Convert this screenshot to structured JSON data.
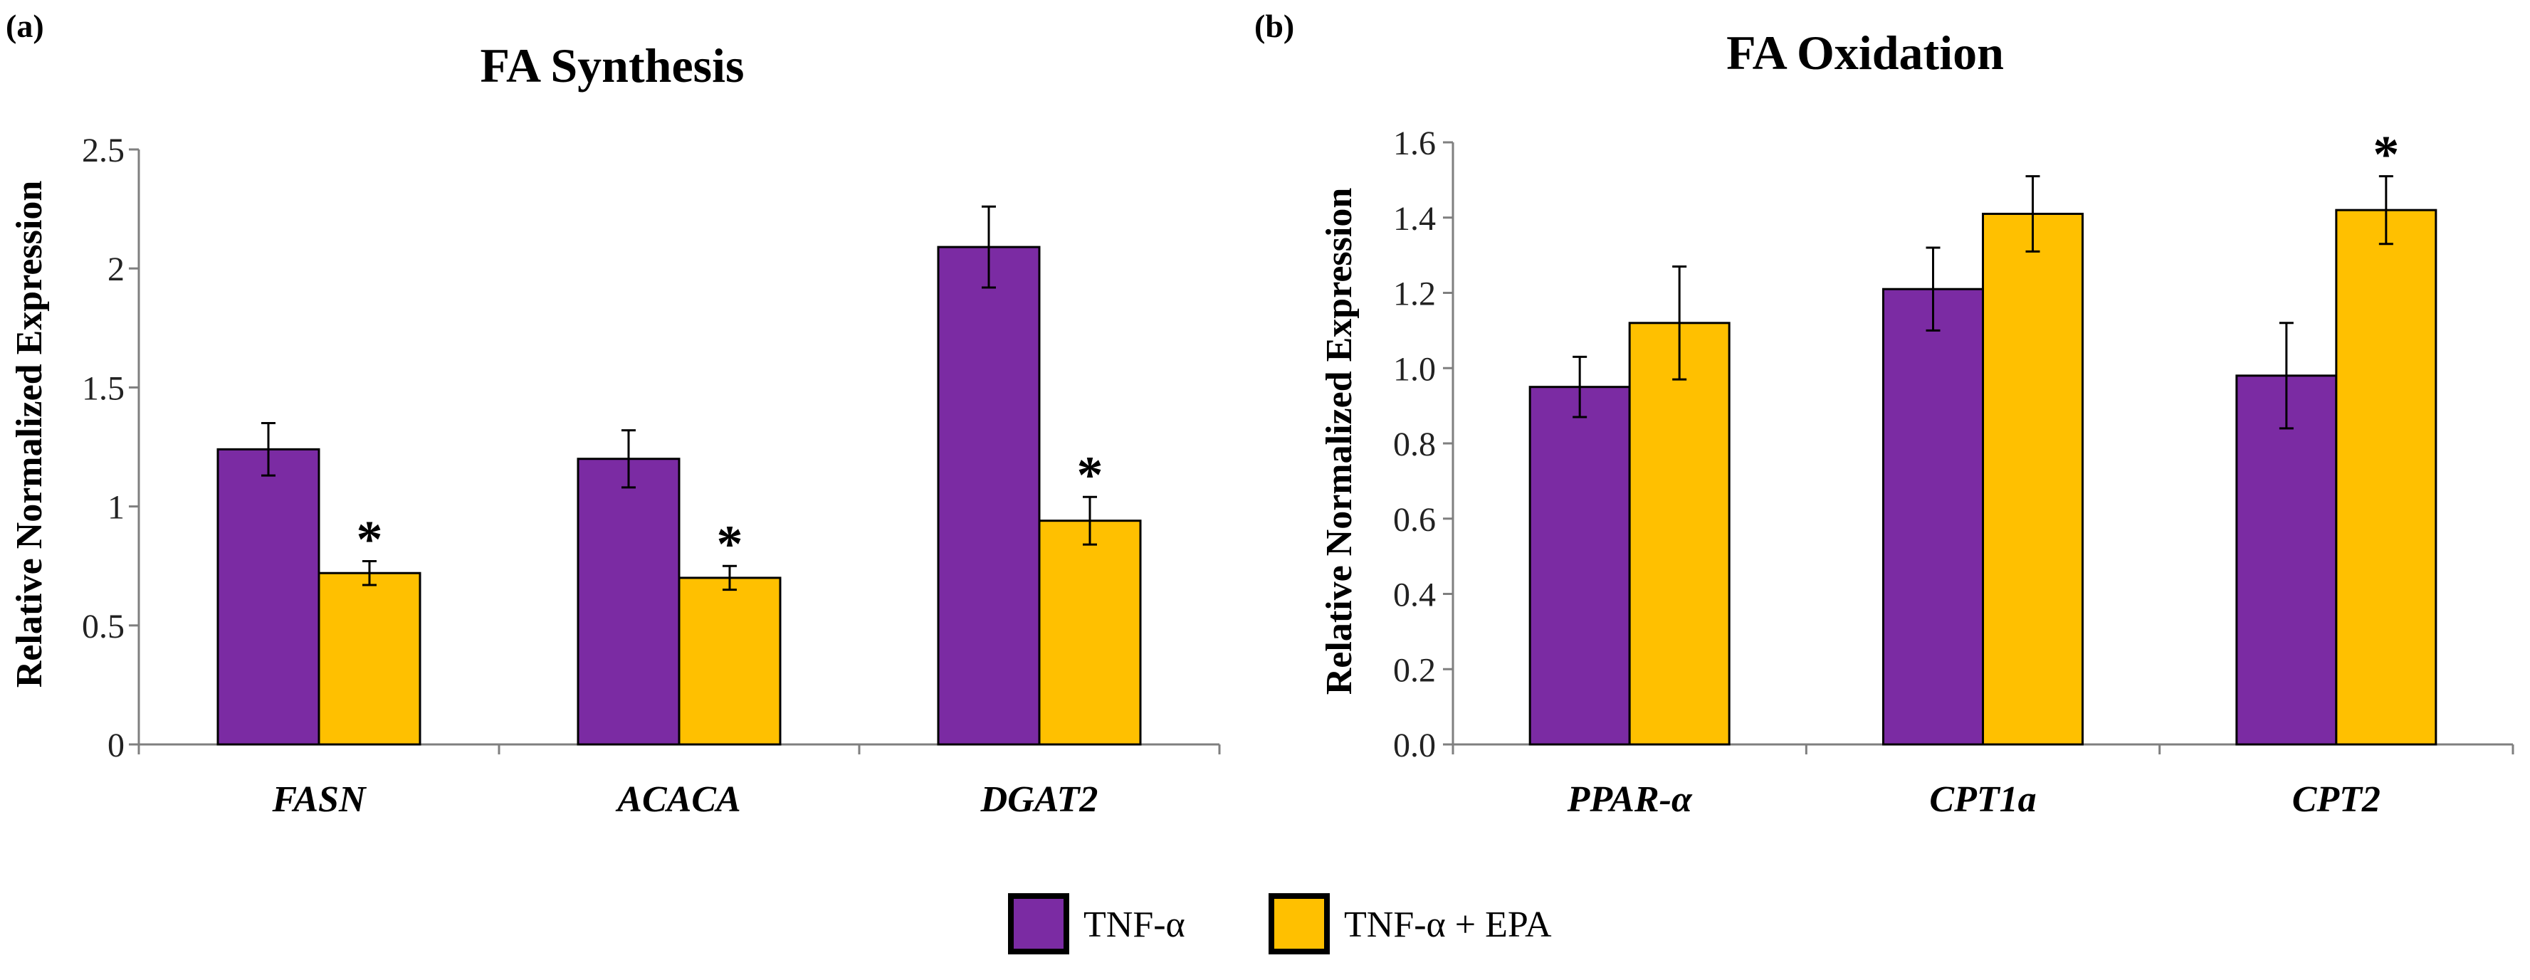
{
  "colors": {
    "tnf": "#7B2BA3",
    "tnf_epa": "#FFC000",
    "axis": "#7f7f7f",
    "bar_edge": "#000000"
  },
  "legend": {
    "items": [
      "TNF-α",
      "TNF-α + EPA"
    ]
  },
  "chart_data": [
    {
      "panel_label": "(a)",
      "type": "bar",
      "title": "FA Synthesis",
      "xlabel": "",
      "ylabel": "Relative Normalized Expression",
      "categories": [
        "FASN",
        "ACACA",
        "DGAT2"
      ],
      "ylim": [
        0,
        2.5
      ],
      "yticks": [
        "0",
        "0.5",
        "1",
        "1.5",
        "2",
        "2.5"
      ],
      "series": [
        {
          "name": "TNF-α",
          "values": [
            1.24,
            1.2,
            2.09
          ],
          "errors": [
            0.11,
            0.12,
            0.17
          ]
        },
        {
          "name": "TNF-α + EPA",
          "values": [
            0.72,
            0.7,
            0.94
          ],
          "errors": [
            0.05,
            0.05,
            0.1
          ]
        }
      ],
      "annotations": [
        {
          "series": 1,
          "category": 0,
          "text": "*"
        },
        {
          "series": 1,
          "category": 1,
          "text": "*"
        },
        {
          "series": 1,
          "category": 2,
          "text": "*"
        }
      ],
      "grid": false
    },
    {
      "panel_label": "(b)",
      "type": "bar",
      "title": "FA Oxidation",
      "xlabel": "",
      "ylabel": "Relative Normalized Expression",
      "categories": [
        "PPAR-α",
        "CPT1a",
        "CPT2"
      ],
      "ylim": [
        0,
        1.6
      ],
      "yticks": [
        "0.0",
        "0.2",
        "0.4",
        "0.6",
        "0.8",
        "1.0",
        "1.2",
        "1.4",
        "1.6"
      ],
      "series": [
        {
          "name": "TNF-α",
          "values": [
            0.95,
            1.21,
            0.98
          ],
          "errors": [
            0.08,
            0.11,
            0.14
          ]
        },
        {
          "name": "TNF-α + EPA",
          "values": [
            1.12,
            1.41,
            1.42
          ],
          "errors": [
            0.15,
            0.1,
            0.09
          ]
        }
      ],
      "annotations": [
        {
          "series": 1,
          "category": 2,
          "text": "*"
        }
      ],
      "grid": false
    }
  ]
}
